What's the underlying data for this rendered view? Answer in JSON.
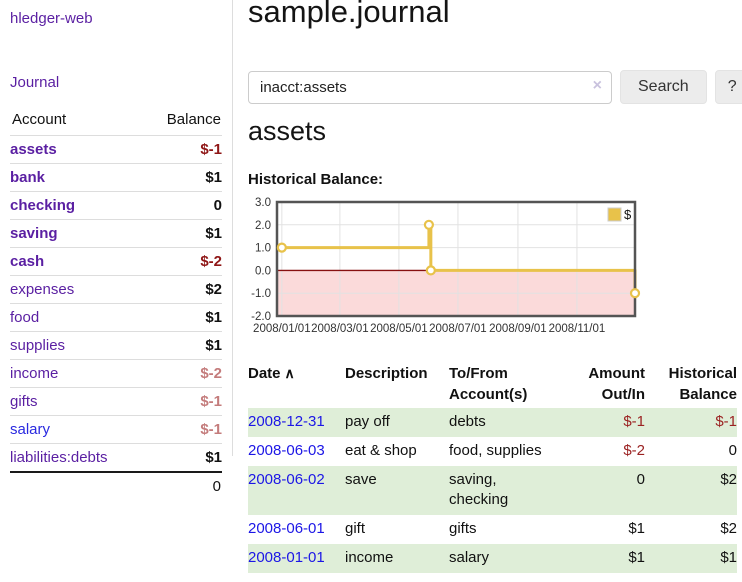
{
  "app": {
    "brand": "hledger-web",
    "journal_link": "Journal"
  },
  "sidebar": {
    "account_header": "Account",
    "balance_header": "Balance",
    "accounts": [
      {
        "name": "assets",
        "balance": "$-1",
        "indent": 1,
        "bold": true,
        "tone": "neg-strong"
      },
      {
        "name": "bank",
        "balance": "$1",
        "indent": 2,
        "bold": true,
        "tone": ""
      },
      {
        "name": "checking",
        "balance": "0",
        "indent": 3,
        "bold": true,
        "tone": ""
      },
      {
        "name": "saving",
        "balance": "$1",
        "indent": 3,
        "bold": true,
        "tone": ""
      },
      {
        "name": "cash",
        "balance": "$-2",
        "indent": 2,
        "bold": true,
        "tone": "neg-strong"
      },
      {
        "name": "expenses",
        "balance": "$2",
        "indent": 1,
        "bold": false,
        "tone": ""
      },
      {
        "name": "food",
        "balance": "$1",
        "indent": 2,
        "bold": false,
        "tone": ""
      },
      {
        "name": "supplies",
        "balance": "$1",
        "indent": 2,
        "bold": false,
        "tone": ""
      },
      {
        "name": "income",
        "balance": "$-2",
        "indent": 1,
        "bold": false,
        "tone": "neg-soft"
      },
      {
        "name": "gifts",
        "balance": "$-1",
        "indent": 2,
        "bold": false,
        "tone": "neg-soft"
      },
      {
        "name": "salary",
        "balance": "$-1",
        "indent": 2,
        "bold": false,
        "tone": "neg-soft",
        "link": "blue"
      },
      {
        "name": "liabilities:debts",
        "balance": "$1",
        "indent": 1,
        "bold": false,
        "tone": ""
      }
    ],
    "total": "0"
  },
  "header": {
    "title": "sample.journal"
  },
  "search": {
    "value": "inacct:assets",
    "clear_icon": "×",
    "button_label": "Search",
    "help_label": "?"
  },
  "account_page": {
    "heading": "assets",
    "chart_label": "Historical Balance:"
  },
  "chart_data": {
    "type": "line",
    "title": "Historical Balance:",
    "x_start": "2008-01-01",
    "x_end": "2008-12-31",
    "ylim": [
      -2,
      3
    ],
    "yticks": [
      {
        "v": 3,
        "label": "3.0"
      },
      {
        "v": 2,
        "label": "2.0"
      },
      {
        "v": 1,
        "label": "1.0"
      },
      {
        "v": 0,
        "label": "0.0"
      },
      {
        "v": -1,
        "label": "-1.0"
      },
      {
        "v": -2,
        "label": "-2.0"
      }
    ],
    "xticks": [
      {
        "date": "2008-01-01",
        "label": "2008/01/01"
      },
      {
        "date": "2008-03-01",
        "label": "2008/03/01"
      },
      {
        "date": "2008-05-01",
        "label": "2008/05/01"
      },
      {
        "date": "2008-07-01",
        "label": "2008/07/01"
      },
      {
        "date": "2008-09-01",
        "label": "2008/09/01"
      },
      {
        "date": "2008-11-01",
        "label": "2008/11/01"
      }
    ],
    "legend_position": "top-right",
    "grid": true,
    "grid_color": "#e2e2e2",
    "border_color": "#545454",
    "zero_line_color": "#871010",
    "negative_fill": "#fbdada",
    "series": [
      {
        "name": "$",
        "color": "#e8c24a",
        "step": true,
        "points": [
          {
            "date": "2008-01-01",
            "value": 1
          },
          {
            "date": "2008-06-01",
            "value": 2
          },
          {
            "date": "2008-06-03",
            "value": 0
          },
          {
            "date": "2008-12-31",
            "value": -1
          }
        ]
      }
    ]
  },
  "register": {
    "columns": {
      "date": "Date",
      "sort_caret": "∧",
      "description": "Description",
      "accounts": "To/From Account(s)",
      "amount": "Amount Out/In",
      "balance": "Historical Balance"
    },
    "rows": [
      {
        "date": "2008-12-31",
        "description": "pay off",
        "accounts": "debts",
        "amount": "$-1",
        "amount_neg": true,
        "balance": "$-1",
        "balance_neg": true
      },
      {
        "date": "2008-06-03",
        "description": "eat & shop",
        "accounts": "food, supplies",
        "amount": "$-2",
        "amount_neg": true,
        "balance": "0",
        "balance_neg": false
      },
      {
        "date": "2008-06-02",
        "description": "save",
        "accounts": "saving, checking",
        "amount": "0",
        "amount_neg": false,
        "balance": "$2",
        "balance_neg": false
      },
      {
        "date": "2008-06-01",
        "description": "gift",
        "accounts": "gifts",
        "amount": "$1",
        "amount_neg": false,
        "balance": "$2",
        "balance_neg": false
      },
      {
        "date": "2008-01-01",
        "description": "income",
        "accounts": "salary",
        "amount": "$1",
        "amount_neg": false,
        "balance": "$1",
        "balance_neg": false
      }
    ]
  }
}
